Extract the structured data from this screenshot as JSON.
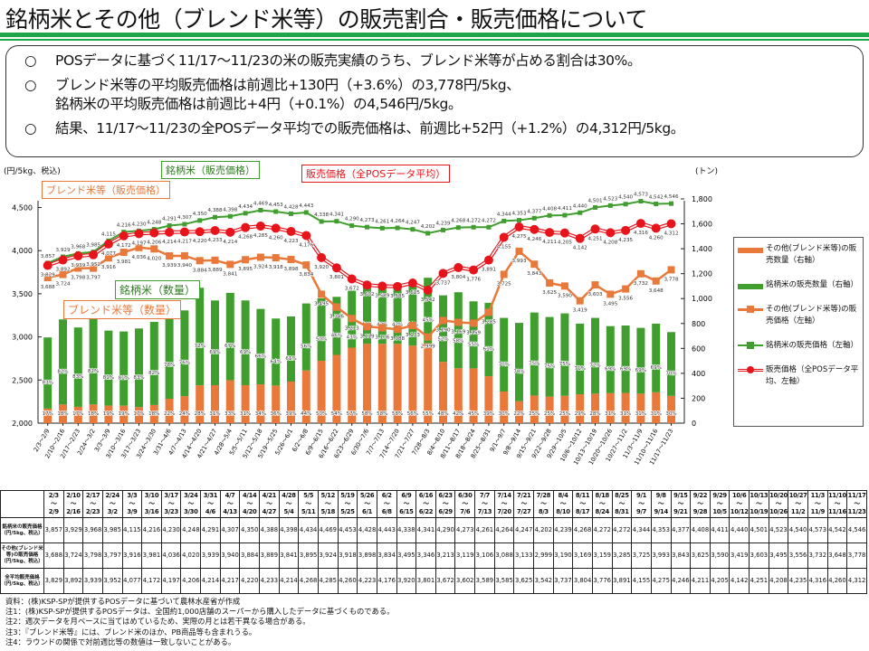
{
  "title": "銘柄米とその他（ブレンド米等）の販売割合・販売価格について",
  "summary": {
    "bullet": "○",
    "lines": [
      "POSデータに基づく11/17～11/23の米の販売実績のうち、ブレンド米等が占める割合は30%。",
      "ブレンド米等の平均販売価格は前週比+130円（+3.6%）の3,778円/5kg、",
      "銘柄米の平均販売価格は前週比+4円（+0.1%）の4,546円/5kg。",
      "結果、11/17～11/23の全POSデータ平均での販売価格は、前週比+52円（+1.2%）の4,312円/5kg。"
    ]
  },
  "chart_data": {
    "type": "bar+line",
    "ylabel_left": "(円/5kg、税込)",
    "ylabel_right": "(トン)",
    "ylim_left": [
      2000,
      4600
    ],
    "ylim_right": [
      0,
      1800
    ],
    "yticks_left": [
      "2,000",
      "2,500",
      "3,000",
      "3,500",
      "4,000",
      "4,500"
    ],
    "yticks_right": [
      "0",
      "200",
      "400",
      "600",
      "800",
      "1,000",
      "1,200",
      "1,400",
      "1,600",
      "1,800"
    ],
    "categories": [
      "2/3～2/9",
      "2/10～2/16",
      "2/17～2/23",
      "2/24～3/2",
      "3/3～3/9",
      "3/10～3/16",
      "3/17～3/23",
      "3/24～3/30",
      "3/31～4/6",
      "4/7～4/13",
      "4/14～4/20",
      "4/21～4/27",
      "4/28～5/4",
      "5/5～5/11",
      "5/12～5/18",
      "5/19～5/25",
      "5/26～6/1",
      "6/2～6/8",
      "6/9～6/15",
      "6/16～6/22",
      "6/23～6/29",
      "6/30～7/6",
      "7/7～7/13",
      "7/14～7/20",
      "7/21～7/27",
      "7/28～8/3",
      "8/4～8/10",
      "8/11～8/17",
      "8/18～8/24",
      "8/25～8/31",
      "9/1～9/7",
      "9/8～9/14",
      "9/15～9/21",
      "9/22～9/28",
      "9/29～10/5",
      "10/6～10/12",
      "10/13～10/19",
      "10/20～10/26",
      "10/27～11/2",
      "11/3～11/9",
      "11/10～11/16",
      "11/17～11/23"
    ],
    "series": [
      {
        "name": "その他(ブレンド米等)の販売数量（右軸）",
        "axis": "right",
        "kind": "bar",
        "color": "#e8793a",
        "values": [
          117,
          150,
          131,
          150,
          141,
          140,
          129,
          146,
          196,
          217,
          304,
          305,
          345,
          305,
          312,
          302,
          334,
          423,
          501,
          548,
          606,
          637,
          637,
          637,
          622,
          642,
          492,
          441,
          440,
          377,
          254,
          177,
          222,
          213,
          220,
          232,
          237,
          241,
          243,
          237,
          248,
          219
        ],
        "share_pct": [
          17,
          18,
          17,
          18,
          19,
          19,
          17,
          18,
          22,
          24,
          28,
          31,
          33,
          31,
          34,
          36,
          39,
          44,
          50,
          54,
          57,
          58,
          58,
          58,
          56,
          55,
          48,
          42,
          45,
          39,
          30,
          22,
          25,
          25,
          25,
          29,
          28,
          31,
          31,
          31,
          31,
          30
        ]
      },
      {
        "name": "銘柄米の販売数量（右軸）",
        "axis": "right",
        "kind": "bar",
        "color": "#3f9e2e",
        "values": [
          571,
          683,
          637,
          685,
          602,
          596,
          631,
          667,
          697,
          688,
          783,
          680,
          701,
          680,
          605,
          538,
          523,
          538,
          501,
          466,
          457,
          462,
          462,
          462,
          489,
          525,
          534,
          610,
          538,
          589,
          591,
          628,
          666,
          639,
          661,
          567,
          608,
          538,
          541,
          528,
          551,
          512
        ],
        "share_pct": [
          83,
          82,
          83,
          82,
          81,
          81,
          83,
          82,
          78,
          76,
          72,
          69,
          67,
          69,
          66,
          64,
          61,
          56,
          50,
          46,
          43,
          42,
          42,
          42,
          44,
          45,
          52,
          58,
          55,
          61,
          70,
          78,
          75,
          75,
          75,
          71,
          72,
          69,
          69,
          69,
          69,
          70
        ]
      },
      {
        "name": "その他(ブレンド米等)の販売価格（左軸）",
        "axis": "left",
        "kind": "line",
        "color": "#e8793a",
        "values": [
          3688,
          3724,
          3798,
          3797,
          3916,
          3981,
          4036,
          4020,
          3939,
          3940,
          3884,
          3889,
          3841,
          3895,
          3924,
          3918,
          3898,
          3834,
          3495,
          3346,
          3213,
          3119,
          3106,
          3088,
          3133,
          2999,
          3190,
          3169,
          3159,
          3285,
          3725,
          3993,
          3843,
          3625,
          3590,
          3419,
          3603,
          3495,
          3556,
          3732,
          3648,
          3778
        ]
      },
      {
        "name": "銘柄米の販売価格（左軸）",
        "axis": "left",
        "kind": "line",
        "color": "#3f9e2e",
        "values": [
          3857,
          3929,
          3968,
          3985,
          4115,
          4216,
          4230,
          4248,
          4291,
          4307,
          4350,
          4388,
          4398,
          4434,
          4469,
          4453,
          4428,
          4443,
          4338,
          4341,
          4290,
          4273,
          4261,
          4264,
          4247,
          4202,
          4239,
          4268,
          4272,
          4272,
          4344,
          4353,
          4377,
          4408,
          4411,
          4440,
          4501,
          4523,
          4540,
          4573,
          4542,
          4546
        ]
      },
      {
        "name": "販売価格（全POSデータ平均、左軸）",
        "axis": "left",
        "kind": "line",
        "color": "#e8141b",
        "values": [
          3829,
          3892,
          3939,
          3952,
          4077,
          4172,
          4197,
          4206,
          4214,
          4217,
          4220,
          4233,
          4214,
          4268,
          4285,
          4260,
          4223,
          4176,
          3920,
          3801,
          3672,
          3602,
          3589,
          3585,
          3625,
          3542,
          3737,
          3804,
          3776,
          3891,
          4155,
          4275,
          4246,
          4211,
          4205,
          4142,
          4251,
          4208,
          4235,
          4316,
          4260,
          4312
        ]
      }
    ],
    "legend": [
      "その他(ブレンド米等)の販売数量（右軸）",
      "銘柄米の販売数量（右軸）",
      "その他(ブレンド米等)の販売価格（左軸）",
      "銘柄米の販売価格（左軸）",
      "販売価格（全POSデータ平均、左軸）"
    ],
    "legend_position": "right",
    "callouts": {
      "blend_price": "ブレンド米等（販売価格）",
      "brand_price": "銘柄米（販売価格）",
      "all_price": "販売価格（全POSデータ平均）",
      "brand_qty": "銘柄米（数量）",
      "blend_qty": "ブレンド米等（数量）"
    }
  },
  "table": {
    "row_labels": [
      "銘柄米の販売価格（円/5kg、税込）",
      "その他(ブレンド米等)の販売価格（円/5kg、税込）",
      "全平均販売価格（円/5kg、税込）"
    ],
    "weeks_from": [
      "2/3",
      "2/10",
      "2/17",
      "2/24",
      "3/3",
      "3/10",
      "3/17",
      "3/24",
      "3/31",
      "4/7",
      "4/14",
      "4/21",
      "4/28",
      "5/5",
      "5/12",
      "5/19",
      "5/26",
      "6/2",
      "6/9",
      "6/16",
      "6/23",
      "6/30",
      "7/7",
      "7/14",
      "7/21",
      "7/28",
      "8/4",
      "8/11",
      "8/18",
      "8/25",
      "9/1",
      "9/8",
      "9/15",
      "9/22",
      "9/29",
      "10/6",
      "10/13",
      "10/20",
      "10/27",
      "11/3",
      "11/10",
      "11/17"
    ],
    "weeks_to": [
      "2/9",
      "2/16",
      "2/23",
      "3/2",
      "3/9",
      "3/16",
      "3/23",
      "3/30",
      "4/6",
      "4/13",
      "4/20",
      "4/27",
      "5/4",
      "5/11",
      "5/18",
      "5/25",
      "6/1",
      "6/8",
      "6/15",
      "6/22",
      "6/29",
      "7/6",
      "7/13",
      "7/20",
      "7/27",
      "8/3",
      "8/10",
      "8/17",
      "8/24",
      "8/31",
      "9/7",
      "9/14",
      "9/21",
      "9/28",
      "10/5",
      "10/12",
      "10/19",
      "10/26",
      "11/2",
      "11/9",
      "11/16",
      "11/23"
    ]
  },
  "notes": [
    "資料：(株)KSP-SPが提供するPOSデータに基づいて農林水産省が作成",
    "注1：(株)KSP-SPが提供するPOSデータは、全国約1,000店舗のスーパーから購入したデータに基づくものである。",
    "注2：週次データを月ベースに当てはめているため、実際の月とは若干異なる場合がある。",
    "注3：『ブレンド米等』には、ブレンド米のほか、PB商品等も含まれうる。",
    "注4：ラウンドの関係で対前週比等の数値は一致しないことがある。"
  ]
}
